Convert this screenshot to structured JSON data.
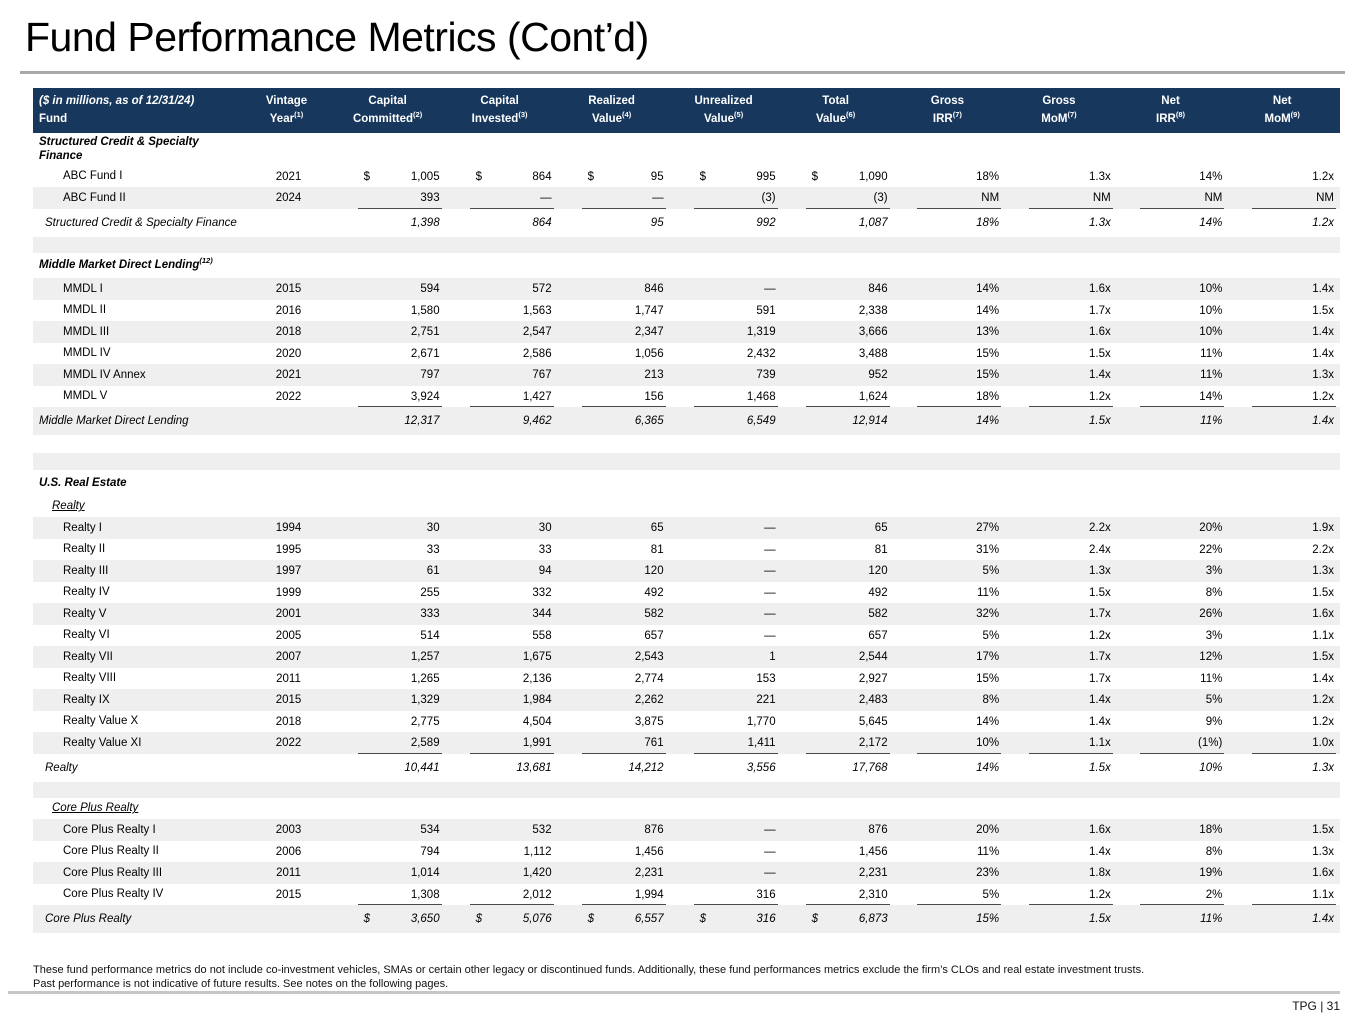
{
  "page": {
    "title": "Fund Performance Metrics (Cont’d)",
    "footnote_line1": "These fund performance metrics do not include co-investment vehicles, SMAs or certain other legacy or discontinued funds. Additionally, these fund performances metrics exclude the firm’s CLOs and real estate investment trusts.",
    "footnote_line2": "Past performance is not indicative of future results. See notes on the following pages.",
    "page_marker": "TPG | 31"
  },
  "colors": {
    "header_bg": "#17375c",
    "stripe": "#efefef",
    "rule_line": "#4a4a4a",
    "divider": "#a9a9a9",
    "footer_divider": "#c6c6c6"
  },
  "table": {
    "header": {
      "left_top": "($ in millions, as of 12/31/24)",
      "left_bottom": "Fund",
      "columns": [
        {
          "key": "vintage-year",
          "top": "Vintage",
          "bottom": "Year",
          "sup": "(1)"
        },
        {
          "key": "capital-committed",
          "top": "Capital",
          "bottom": "Committed",
          "sup": "(2)"
        },
        {
          "key": "capital-invested",
          "top": "Capital",
          "bottom": "Invested",
          "sup": "(3)"
        },
        {
          "key": "realized-value",
          "top": "Realized",
          "bottom": "Value",
          "sup": "(4)"
        },
        {
          "key": "unrealized-value",
          "top": "Unrealized",
          "bottom": "Value",
          "sup": "(5)"
        },
        {
          "key": "total-value",
          "top": "Total",
          "bottom": "Value",
          "sup": "(6)"
        },
        {
          "key": "gross-irr",
          "top": "Gross",
          "bottom": "IRR",
          "sup": "(7)"
        },
        {
          "key": "gross-mom",
          "top": "Gross",
          "bottom": "MoM",
          "sup": "(7)"
        },
        {
          "key": "net-irr",
          "top": "Net",
          "bottom": "IRR",
          "sup": "(8)"
        },
        {
          "key": "net-mom",
          "top": "Net",
          "bottom": "MoM",
          "sup": "(9)"
        }
      ]
    },
    "rows": [
      {
        "type": "section",
        "label": "Structured Credit & Specialty Finance",
        "shade": false
      },
      {
        "type": "data",
        "label": "ABC Fund I",
        "vintage": "2021",
        "dollar": true,
        "shade": false,
        "values": [
          "1,005",
          "864",
          "95",
          "995",
          "1,090",
          "18%",
          "1.3x",
          "14%",
          "1.2x"
        ]
      },
      {
        "type": "data",
        "label": "ABC Fund II",
        "vintage": "2024",
        "rule": true,
        "shade": true,
        "values": [
          "393",
          "—",
          "—",
          "(3)",
          "(3)",
          "NM",
          "NM",
          "NM",
          "NM"
        ]
      },
      {
        "type": "subtotal",
        "label": "Structured Credit & Specialty Finance",
        "shade": false,
        "values": [
          "1,398",
          "864",
          "95",
          "992",
          "1,087",
          "18%",
          "1.3x",
          "14%",
          "1.2x"
        ]
      },
      {
        "type": "spacer",
        "shade": true,
        "h": 16
      },
      {
        "type": "section",
        "label": "Middle Market Direct Lending",
        "sup": "(12)",
        "shade": false
      },
      {
        "type": "data",
        "label": "MMDL I",
        "vintage": "2015",
        "shade": true,
        "values": [
          "594",
          "572",
          "846",
          "—",
          "846",
          "14%",
          "1.6x",
          "10%",
          "1.4x"
        ]
      },
      {
        "type": "data",
        "label": "MMDL II",
        "vintage": "2016",
        "shade": false,
        "values": [
          "1,580",
          "1,563",
          "1,747",
          "591",
          "2,338",
          "14%",
          "1.7x",
          "10%",
          "1.5x"
        ]
      },
      {
        "type": "data",
        "label": "MMDL III",
        "vintage": "2018",
        "shade": true,
        "values": [
          "2,751",
          "2,547",
          "2,347",
          "1,319",
          "3,666",
          "13%",
          "1.6x",
          "10%",
          "1.4x"
        ]
      },
      {
        "type": "data",
        "label": "MMDL IV",
        "vintage": "2020",
        "shade": false,
        "values": [
          "2,671",
          "2,586",
          "1,056",
          "2,432",
          "3,488",
          "15%",
          "1.5x",
          "11%",
          "1.4x"
        ]
      },
      {
        "type": "data",
        "label": "MMDL IV Annex",
        "vintage": "2021",
        "shade": true,
        "values": [
          "797",
          "767",
          "213",
          "739",
          "952",
          "15%",
          "1.4x",
          "11%",
          "1.3x"
        ]
      },
      {
        "type": "data",
        "label": "MMDL V",
        "vintage": "2022",
        "rule": true,
        "shade": false,
        "values": [
          "3,924",
          "1,427",
          "156",
          "1,468",
          "1,624",
          "18%",
          "1.2x",
          "14%",
          "1.2x"
        ]
      },
      {
        "type": "subtotal",
        "label": "Middle Market Direct Lending",
        "flush": true,
        "shade": true,
        "values": [
          "12,317",
          "9,462",
          "6,365",
          "6,549",
          "12,914",
          "14%",
          "1.5x",
          "11%",
          "1.4x"
        ]
      },
      {
        "type": "spacer",
        "shade": false,
        "h": 18
      },
      {
        "type": "spacer",
        "shade": true,
        "h": 17
      },
      {
        "type": "section",
        "label": "U.S. Real Estate",
        "shade": false
      },
      {
        "type": "subheader",
        "label": "Realty",
        "shade": false
      },
      {
        "type": "data",
        "label": "Realty I",
        "vintage": "1994",
        "shade": true,
        "values": [
          "30",
          "30",
          "65",
          "—",
          "65",
          "27%",
          "2.2x",
          "20%",
          "1.9x"
        ]
      },
      {
        "type": "data",
        "label": "Realty II",
        "vintage": "1995",
        "shade": false,
        "values": [
          "33",
          "33",
          "81",
          "—",
          "81",
          "31%",
          "2.4x",
          "22%",
          "2.2x"
        ]
      },
      {
        "type": "data",
        "label": "Realty III",
        "vintage": "1997",
        "shade": true,
        "values": [
          "61",
          "94",
          "120",
          "—",
          "120",
          "5%",
          "1.3x",
          "3%",
          "1.3x"
        ]
      },
      {
        "type": "data",
        "label": "Realty IV",
        "vintage": "1999",
        "shade": false,
        "values": [
          "255",
          "332",
          "492",
          "—",
          "492",
          "11%",
          "1.5x",
          "8%",
          "1.5x"
        ]
      },
      {
        "type": "data",
        "label": "Realty V",
        "vintage": "2001",
        "shade": true,
        "values": [
          "333",
          "344",
          "582",
          "—",
          "582",
          "32%",
          "1.7x",
          "26%",
          "1.6x"
        ]
      },
      {
        "type": "data",
        "label": "Realty VI",
        "vintage": "2005",
        "shade": false,
        "values": [
          "514",
          "558",
          "657",
          "—",
          "657",
          "5%",
          "1.2x",
          "3%",
          "1.1x"
        ]
      },
      {
        "type": "data",
        "label": "Realty VII",
        "vintage": "2007",
        "shade": true,
        "values": [
          "1,257",
          "1,675",
          "2,543",
          "1",
          "2,544",
          "17%",
          "1.7x",
          "12%",
          "1.5x"
        ]
      },
      {
        "type": "data",
        "label": "Realty VIII",
        "vintage": "2011",
        "shade": false,
        "values": [
          "1,265",
          "2,136",
          "2,774",
          "153",
          "2,927",
          "15%",
          "1.7x",
          "11%",
          "1.4x"
        ]
      },
      {
        "type": "data",
        "label": "Realty IX",
        "vintage": "2015",
        "shade": true,
        "values": [
          "1,329",
          "1,984",
          "2,262",
          "221",
          "2,483",
          "8%",
          "1.4x",
          "5%",
          "1.2x"
        ]
      },
      {
        "type": "data",
        "label": "Realty Value X",
        "vintage": "2018",
        "shade": false,
        "values": [
          "2,775",
          "4,504",
          "3,875",
          "1,770",
          "5,645",
          "14%",
          "1.4x",
          "9%",
          "1.2x"
        ]
      },
      {
        "type": "data",
        "label": "Realty Value XI",
        "vintage": "2022",
        "rule": true,
        "shade": true,
        "values": [
          "2,589",
          "1,991",
          "761",
          "1,411",
          "2,172",
          "10%",
          "1.1x",
          "(1%)",
          "1.0x"
        ]
      },
      {
        "type": "subtotal",
        "label": "Realty",
        "shade": false,
        "values": [
          "10,441",
          "13,681",
          "14,212",
          "3,556",
          "17,768",
          "14%",
          "1.5x",
          "10%",
          "1.3x"
        ]
      },
      {
        "type": "spacer",
        "shade": true,
        "h": 16
      },
      {
        "type": "subheader",
        "label": "Core Plus Realty",
        "shade": false
      },
      {
        "type": "data",
        "label": "Core Plus Realty I",
        "vintage": "2003",
        "shade": true,
        "values": [
          "534",
          "532",
          "876",
          "—",
          "876",
          "20%",
          "1.6x",
          "18%",
          "1.5x"
        ]
      },
      {
        "type": "data",
        "label": "Core Plus Realty II",
        "vintage": "2006",
        "shade": false,
        "values": [
          "794",
          "1,112",
          "1,456",
          "—",
          "1,456",
          "11%",
          "1.4x",
          "8%",
          "1.3x"
        ]
      },
      {
        "type": "data",
        "label": "Core Plus Realty III",
        "vintage": "2011",
        "shade": true,
        "values": [
          "1,014",
          "1,420",
          "2,231",
          "—",
          "2,231",
          "23%",
          "1.8x",
          "19%",
          "1.6x"
        ]
      },
      {
        "type": "data",
        "label": "Core Plus Realty IV",
        "vintage": "2015",
        "rule": true,
        "shade": false,
        "values": [
          "1,308",
          "2,012",
          "1,994",
          "316",
          "2,310",
          "5%",
          "1.2x",
          "2%",
          "1.1x"
        ]
      },
      {
        "type": "subtotal",
        "label": "Core Plus Realty",
        "dollar": true,
        "shade": true,
        "values": [
          "3,650",
          "5,076",
          "6,557",
          "316",
          "6,873",
          "15%",
          "1.5x",
          "11%",
          "1.4x"
        ]
      }
    ]
  }
}
